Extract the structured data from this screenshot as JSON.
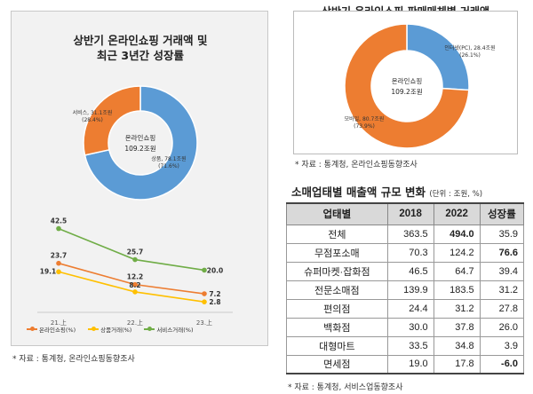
{
  "left_panel": {
    "title_line1": "상반기 온라인쇼핑 거래액 및",
    "title_line2": "최근 3년간 성장률",
    "source": "* 자료 : 통계청, 온라인쇼핑동향조사"
  },
  "right_panel": {
    "title": "상반기 온라인쇼핑 판매매체별 거래액",
    "source": "* 자료 : 통계청, 온라인쇼핑동향조사"
  },
  "table": {
    "title": "소매업태별 매출액 규모 변화",
    "unit": "(단위 : 조원, %)",
    "source": "* 자료 : 통계청, 서비스업동향조사",
    "headers": [
      "업태별",
      "2018",
      "2022",
      "성장률"
    ],
    "rows": [
      {
        "cat": "전체",
        "y2018": "363.5",
        "y2022": "494.0",
        "growth": "35.9",
        "bold2022": true,
        "boldGrowth": false
      },
      {
        "cat": "무점포소매",
        "y2018": "70.3",
        "y2022": "124.2",
        "growth": "76.6",
        "bold2022": false,
        "boldGrowth": true
      },
      {
        "cat": "슈퍼마켓·잡화점",
        "y2018": "46.5",
        "y2022": "64.7",
        "growth": "39.4",
        "bold2022": false,
        "boldGrowth": false
      },
      {
        "cat": "전문소매점",
        "y2018": "139.9",
        "y2022": "183.5",
        "growth": "31.2",
        "bold2022": false,
        "boldGrowth": false
      },
      {
        "cat": "편의점",
        "y2018": "24.4",
        "y2022": "31.2",
        "growth": "27.8",
        "bold2022": false,
        "boldGrowth": false
      },
      {
        "cat": "백화점",
        "y2018": "30.0",
        "y2022": "37.8",
        "growth": "26.0",
        "bold2022": false,
        "boldGrowth": false
      },
      {
        "cat": "대형마트",
        "y2018": "33.5",
        "y2022": "34.8",
        "growth": "3.9",
        "bold2022": false,
        "boldGrowth": false
      },
      {
        "cat": "면세점",
        "y2018": "19.0",
        "y2022": "17.8",
        "growth": "-6.0",
        "bold2022": false,
        "boldGrowth": true
      }
    ]
  },
  "chart_data": [
    {
      "type": "pie",
      "center_label_1": "온라인쇼핑",
      "center_label_2": "109.2조원",
      "slices": [
        {
          "name": "상품",
          "value": 78.1,
          "label": "상품, 78.1조원",
          "pct": "(71.6%)",
          "color": "#5b9bd5"
        },
        {
          "name": "서비스",
          "value": 31.1,
          "label": "서비스, 31.1조원",
          "pct": "(28.4%)",
          "color": "#ed7d31"
        }
      ]
    },
    {
      "type": "line",
      "categories": [
        "21.上",
        "22.上",
        "23.上"
      ],
      "ylim": [
        0,
        50
      ],
      "legend_position": "bottom",
      "series": [
        {
          "name": "온라인쇼핑(%)",
          "values": [
            23.7,
            12.2,
            7.2
          ],
          "labels": [
            "23.7",
            "12.2",
            "7.2"
          ],
          "color": "#ed7d31"
        },
        {
          "name": "상품거래(%)",
          "values": [
            19.1,
            8.2,
            2.8
          ],
          "labels": [
            "19.1",
            "8.2",
            "2.8"
          ],
          "color": "#ffc000"
        },
        {
          "name": "서비스거래(%)",
          "values": [
            42.5,
            25.7,
            20.0
          ],
          "labels": [
            "42.5",
            "25.7",
            "20.0"
          ],
          "color": "#70ad47"
        }
      ]
    },
    {
      "type": "pie",
      "center_label_1": "온라인쇼핑",
      "center_label_2": "109.2조원",
      "slices": [
        {
          "name": "인터넷(PC)",
          "value": 28.4,
          "label": "인터넷(PC), 28.4조원",
          "pct": "(26.1%)",
          "color": "#5b9bd5"
        },
        {
          "name": "모바일",
          "value": 80.7,
          "label": "모바일, 80.7조원",
          "pct": "(73.9%)",
          "color": "#ed7d31"
        }
      ]
    }
  ]
}
